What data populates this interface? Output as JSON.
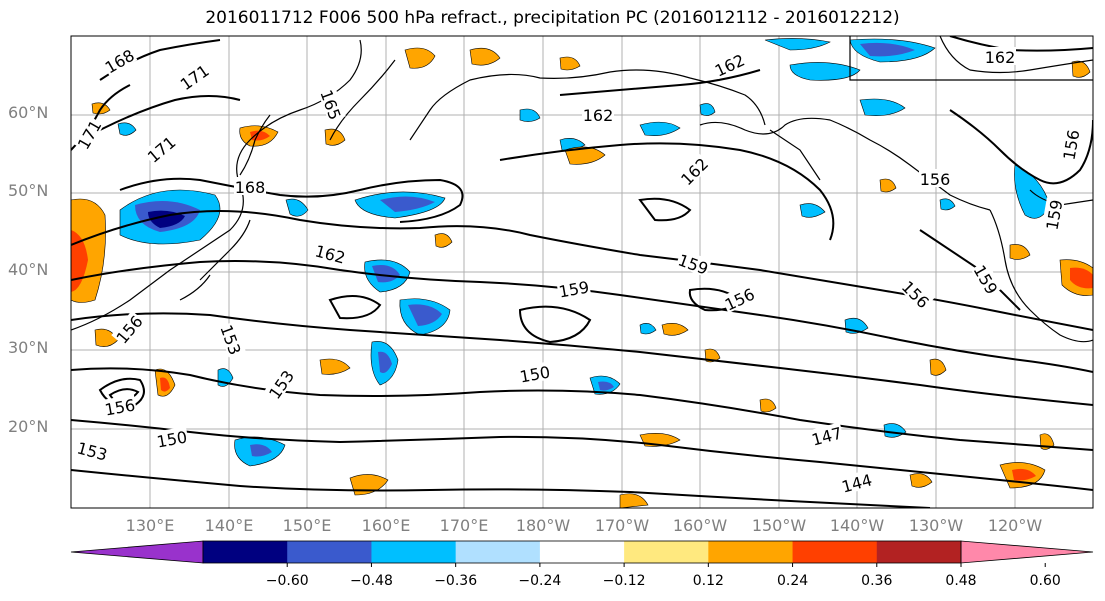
{
  "title": "2016011712 F006 500 hPa refract., precipitation PC (2016012112 - 2016012212)",
  "lat_labels": [
    "60°N",
    "50°N",
    "40°N",
    "30°N",
    "20°N"
  ],
  "lon_labels": [
    "130°E",
    "140°E",
    "150°E",
    "160°E",
    "170°E",
    "180°W",
    "170°W",
    "160°W",
    "150°W",
    "140°W",
    "130°W",
    "120°W"
  ],
  "contour_labels": [
    "168",
    "171",
    "171",
    "171",
    "165",
    "168",
    "162",
    "162",
    "162",
    "162",
    "156",
    "156",
    "162",
    "159",
    "159",
    "156",
    "156",
    "159",
    "153",
    "153",
    "150",
    "150",
    "147",
    "144",
    "153",
    "156",
    "156",
    "159"
  ],
  "colorbar": {
    "colors": [
      "#9932cc",
      "#000080",
      "#3a5acd",
      "#00bfff",
      "#b0e0ff",
      "#ffffff",
      "#ffe97f",
      "#ffa500",
      "#ff4000",
      "#b22222",
      "#ff88aa"
    ],
    "tick_labels": [
      "−0.60",
      "−0.48",
      "−0.36",
      "−0.24",
      "−0.12",
      "0.12",
      "0.24",
      "0.36",
      "0.48",
      "0.60"
    ]
  },
  "colors": {
    "grid": "#b0b0b0",
    "contour": "#000000",
    "coast": "#000000",
    "axis_text": "#808080"
  }
}
